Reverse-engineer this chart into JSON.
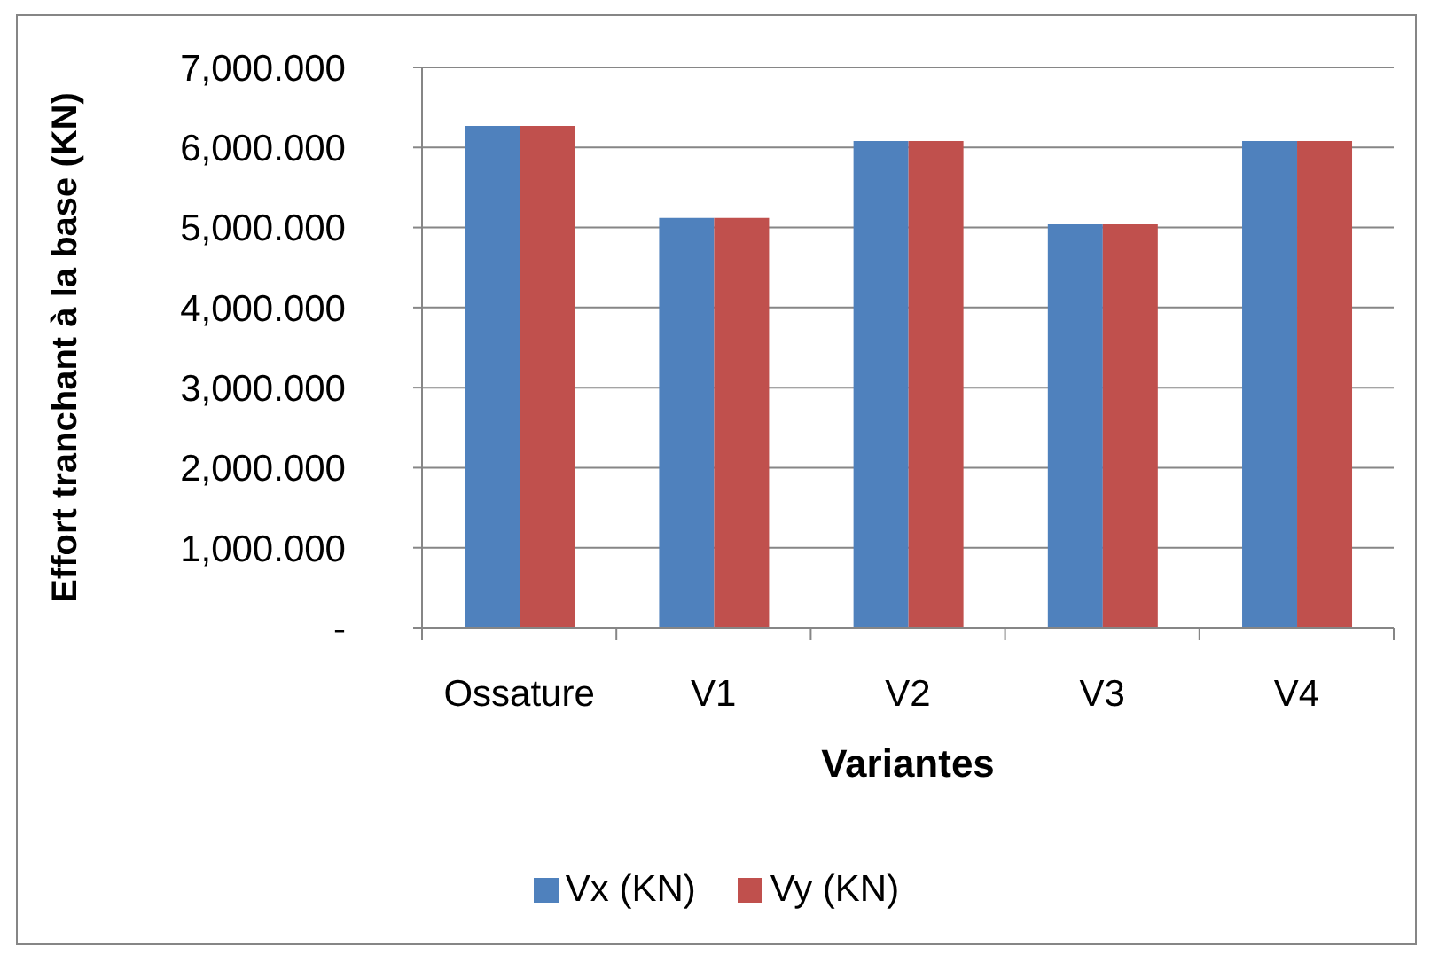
{
  "chart_data": {
    "type": "bar",
    "xlabel": "Variantes",
    "ylabel": "Effort tranchant à la base (KN)",
    "categories": [
      "Ossature",
      "V1",
      "V2",
      "V3",
      "V4"
    ],
    "series": [
      {
        "name": "Vx (KN)",
        "color": "#4f81bd",
        "values": [
          6270,
          5120,
          6080,
          5040,
          6080
        ]
      },
      {
        "name": "Vy (KN)",
        "color": "#c0504d",
        "values": [
          6270,
          5120,
          6080,
          5040,
          6080
        ]
      }
    ],
    "ylim": [
      0,
      7000
    ],
    "yticks": [
      {
        "value": 0,
        "label": "-"
      },
      {
        "value": 1000,
        "label": "1,000.000"
      },
      {
        "value": 2000,
        "label": "2,000.000"
      },
      {
        "value": 3000,
        "label": "3,000.000"
      },
      {
        "value": 4000,
        "label": "4,000.000"
      },
      {
        "value": 5000,
        "label": "5,000.000"
      },
      {
        "value": 6000,
        "label": "6,000.000"
      },
      {
        "value": 7000,
        "label": "7,000.000"
      }
    ],
    "grid": "y",
    "legend": "bottom"
  }
}
